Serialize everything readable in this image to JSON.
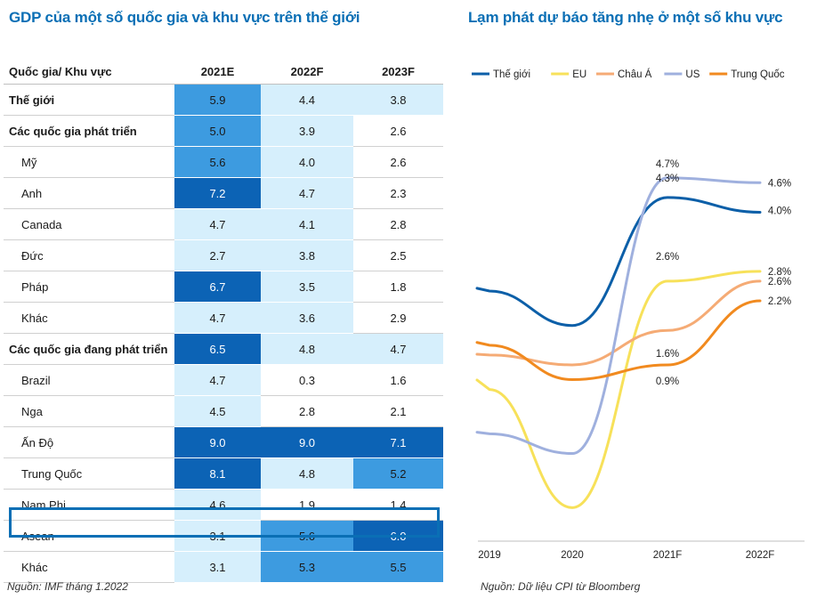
{
  "left": {
    "title": "GDP của một số quốc gia và khu vực trên thế giới",
    "source": "Nguồn: IMF tháng 1.2022",
    "header": [
      "Quốc gia/ Khu vực",
      "2021E",
      "2022F",
      "2023F"
    ],
    "rows": [
      {
        "name": "Thế giới",
        "values": [
          "5.9",
          "4.4",
          "3.8"
        ],
        "style": "bold"
      },
      {
        "name": "Các quốc gia phát triển",
        "values": [
          "5.0",
          "3.9",
          "2.6"
        ],
        "style": "bold"
      },
      {
        "name": "Mỹ",
        "values": [
          "5.6",
          "4.0",
          "2.6"
        ],
        "style": "sub"
      },
      {
        "name": "Anh",
        "values": [
          "7.2",
          "4.7",
          "2.3"
        ],
        "style": "sub"
      },
      {
        "name": "Canada",
        "values": [
          "4.7",
          "4.1",
          "2.8"
        ],
        "style": "sub"
      },
      {
        "name": "Đức",
        "values": [
          "2.7",
          "3.8",
          "2.5"
        ],
        "style": "sub"
      },
      {
        "name": "Pháp",
        "values": [
          "6.7",
          "3.5",
          "1.8"
        ],
        "style": "sub"
      },
      {
        "name": "Khác",
        "values": [
          "4.7",
          "3.6",
          "2.9"
        ],
        "style": "sub"
      },
      {
        "name": "Các quốc gia đang phát triển",
        "values": [
          "6.5",
          "4.8",
          "4.7"
        ],
        "style": "bold"
      },
      {
        "name": "Brazil",
        "values": [
          "4.7",
          "0.3",
          "1.6"
        ],
        "style": "sub"
      },
      {
        "name": "Nga",
        "values": [
          "4.5",
          "2.8",
          "2.1"
        ],
        "style": "sub"
      },
      {
        "name": "Ấn Độ",
        "values": [
          "9.0",
          "9.0",
          "7.1"
        ],
        "style": "sub"
      },
      {
        "name": "Trung Quốc",
        "values": [
          "8.1",
          "4.8",
          "5.2"
        ],
        "style": "sub"
      },
      {
        "name": "Nam Phi",
        "values": [
          "4.6",
          "1.9",
          "1.4"
        ],
        "style": "sub"
      },
      {
        "name": "Asean",
        "values": [
          "3.1",
          "5.6",
          "6.0"
        ],
        "style": "sub"
      },
      {
        "name": "Khác",
        "values": [
          "3.1",
          "5.3",
          "5.5"
        ],
        "style": "sub"
      }
    ],
    "cell_colors": [
      [
        "#3d9be0",
        "#d6effc",
        "#d6effc"
      ],
      [
        "#3d9be0",
        "#d6effc",
        "#ffffff"
      ],
      [
        "#3d9be0",
        "#d6effc",
        "#ffffff"
      ],
      [
        "#0c63b5",
        "#d6effc",
        "#ffffff"
      ],
      [
        "#d6effc",
        "#d6effc",
        "#ffffff"
      ],
      [
        "#d6effc",
        "#d6effc",
        "#ffffff"
      ],
      [
        "#0c63b5",
        "#d6effc",
        "#ffffff"
      ],
      [
        "#d6effc",
        "#d6effc",
        "#ffffff"
      ],
      [
        "#0c63b5",
        "#d6effc",
        "#d6effc"
      ],
      [
        "#d6effc",
        "#ffffff",
        "#ffffff"
      ],
      [
        "#d6effc",
        "#ffffff",
        "#ffffff"
      ],
      [
        "#0c63b5",
        "#0c63b5",
        "#0c63b5"
      ],
      [
        "#0c63b5",
        "#d6effc",
        "#3d9be0"
      ],
      [
        "#d6effc",
        "#ffffff",
        "#ffffff"
      ],
      [
        "#d6effc",
        "#3d9be0",
        "#0c63b5"
      ],
      [
        "#d6effc",
        "#3d9be0",
        "#3d9be0"
      ]
    ]
  },
  "right": {
    "title": "Lạm phát dự báo tăng nhẹ ở một số khu vực",
    "source": "Nguồn: Dữ liệu CPI từ Bloomberg"
  },
  "chart_data": {
    "type": "line",
    "title": "Lạm phát dự báo tăng nhẹ ở một số khu vực",
    "categories": [
      "2019",
      "2020",
      "2021F",
      "2022F"
    ],
    "ylim": [
      -2.5,
      5.6
    ],
    "grid": false,
    "legend": "top",
    "series": [
      {
        "name": "Thế giới",
        "color": "#0c5fa8",
        "values": [
          2.4,
          1.7,
          4.3,
          4.0
        ],
        "labels": [
          "",
          "",
          "4.3%",
          "4.0%"
        ]
      },
      {
        "name": "EU",
        "color": "#f7e15a",
        "values": [
          0.4,
          -2.0,
          2.6,
          2.8
        ],
        "labels": [
          "",
          "",
          "2.6%",
          "2.8%"
        ]
      },
      {
        "name": "Châu Á",
        "color": "#f5ab75",
        "values": [
          1.1,
          0.9,
          1.6,
          2.6
        ],
        "labels": [
          "",
          "",
          "1.6%",
          "2.6%"
        ]
      },
      {
        "name": "US",
        "color": "#9fb0de",
        "values": [
          -0.5,
          -0.9,
          4.7,
          4.6
        ],
        "labels": [
          "",
          "",
          "4.7%",
          "4.6%"
        ]
      },
      {
        "name": "Trung Quốc",
        "color": "#f18a1f",
        "values": [
          1.3,
          0.6,
          0.9,
          2.2
        ],
        "labels": [
          "",
          "",
          "0.9%",
          "2.2%"
        ]
      }
    ]
  }
}
